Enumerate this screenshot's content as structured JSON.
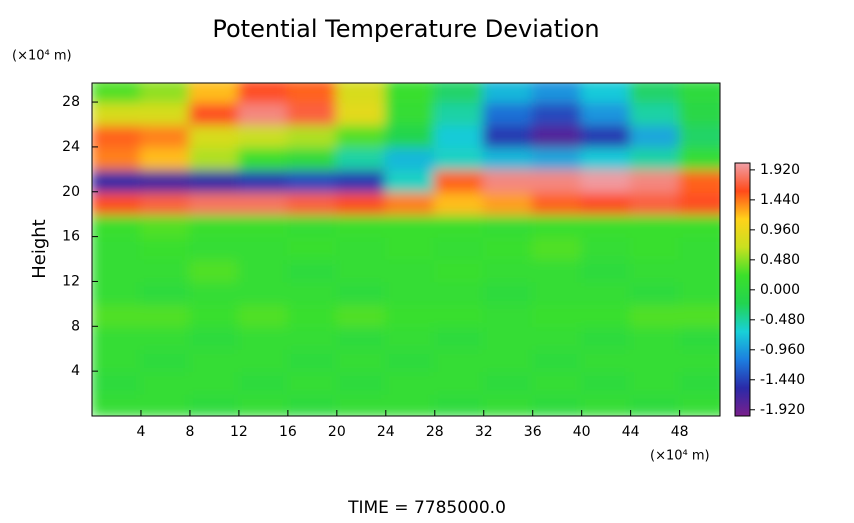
{
  "chart_data": {
    "type": "heatmap",
    "title": "Potential Temperature Deviation",
    "y_units": "(×10⁴ m)",
    "x_units": "(×10⁴ m)",
    "ylabel": "Height",
    "footer": "TIME = 7785000.0",
    "xlim": [
      0,
      51.3
    ],
    "ylim": [
      0,
      29.7
    ],
    "xticks": [
      4,
      8,
      12,
      16,
      20,
      24,
      28,
      32,
      36,
      40,
      44,
      48
    ],
    "yticks": [
      4,
      8,
      12,
      16,
      20,
      24,
      28
    ],
    "x": [
      2,
      6,
      10,
      14,
      18,
      22,
      26,
      30,
      34,
      38,
      42,
      46,
      50
    ],
    "y": [
      1,
      3,
      5,
      7,
      9,
      11,
      13,
      15,
      17,
      19,
      21,
      23,
      25,
      27,
      29
    ],
    "z": [
      [
        0.1,
        0.1,
        0.0,
        0.1,
        0.0,
        0.1,
        0.1,
        0.0,
        0.1,
        0.0,
        0.1,
        0.0,
        0.1
      ],
      [
        0.0,
        0.1,
        0.1,
        0.0,
        0.1,
        0.0,
        0.1,
        0.1,
        0.0,
        0.1,
        0.0,
        0.1,
        0.0
      ],
      [
        0.1,
        0.0,
        0.1,
        0.1,
        0.0,
        0.1,
        0.0,
        0.1,
        0.1,
        0.0,
        0.1,
        0.1,
        0.1
      ],
      [
        0.1,
        0.1,
        0.0,
        0.1,
        0.1,
        0.0,
        0.1,
        0.0,
        0.1,
        0.1,
        0.0,
        0.1,
        0.0
      ],
      [
        0.3,
        0.3,
        0.2,
        0.3,
        0.2,
        0.3,
        0.2,
        0.2,
        0.1,
        0.2,
        0.2,
        0.3,
        0.3
      ],
      [
        0.1,
        0.0,
        0.1,
        0.1,
        0.1,
        0.0,
        0.1,
        0.1,
        0.0,
        0.1,
        0.1,
        0.0,
        0.1
      ],
      [
        0.1,
        0.1,
        0.3,
        0.1,
        0.0,
        0.1,
        0.1,
        0.2,
        0.1,
        0.1,
        0.0,
        0.1,
        0.1
      ],
      [
        0.1,
        0.2,
        0.1,
        0.1,
        0.2,
        0.1,
        0.2,
        0.1,
        0.2,
        0.3,
        0.1,
        0.2,
        0.1
      ],
      [
        0.2,
        0.3,
        0.2,
        0.2,
        0.1,
        0.2,
        0.2,
        0.2,
        0.1,
        0.2,
        0.2,
        0.2,
        0.2
      ],
      [
        1.6,
        1.7,
        1.8,
        1.8,
        1.7,
        1.6,
        1.4,
        1.2,
        1.3,
        1.5,
        1.6,
        1.7,
        1.6
      ],
      [
        -1.6,
        -1.7,
        -1.6,
        -1.5,
        -1.4,
        -1.5,
        -0.6,
        1.5,
        1.9,
        1.9,
        2.0,
        1.9,
        1.5
      ],
      [
        1.4,
        1.2,
        0.6,
        0.2,
        0.0,
        -0.5,
        -0.8,
        -0.6,
        -0.8,
        -0.9,
        -0.7,
        -0.5,
        0.1
      ],
      [
        1.5,
        1.4,
        0.8,
        0.7,
        0.6,
        0.3,
        -0.2,
        -0.7,
        -1.5,
        -1.8,
        -1.5,
        -0.9,
        -0.3
      ],
      [
        0.8,
        0.8,
        1.6,
        1.9,
        1.7,
        0.9,
        0.1,
        -0.5,
        -1.2,
        -1.4,
        -1.0,
        -0.5,
        -0.1
      ],
      [
        0.3,
        0.5,
        1.2,
        1.6,
        1.5,
        0.8,
        0.2,
        -0.3,
        -0.8,
        -1.0,
        -0.7,
        -0.3,
        0.0
      ]
    ],
    "zlim": [
      -2.02,
      2.03
    ],
    "zticks": [
      {
        "value": -1.92,
        "label": "-1.920"
      },
      {
        "value": -1.44,
        "label": "-1.440"
      },
      {
        "value": -0.96,
        "label": "-0.960"
      },
      {
        "value": -0.48,
        "label": "-0.480"
      },
      {
        "value": 0,
        "label": "0.000"
      },
      {
        "value": 0.48,
        "label": "0.480"
      },
      {
        "value": 0.96,
        "label": "0.960"
      },
      {
        "value": 1.44,
        "label": "1.440"
      },
      {
        "value": 1.92,
        "label": "1.920"
      }
    ],
    "colors": [
      "#7a1f8c",
      "#2a2aa8",
      "#1c7ee0",
      "#18d0d8",
      "#22d450",
      "#3be02a",
      "#c8e020",
      "#ffd21a",
      "#ff4a1a",
      "#f0a0a8"
    ]
  }
}
